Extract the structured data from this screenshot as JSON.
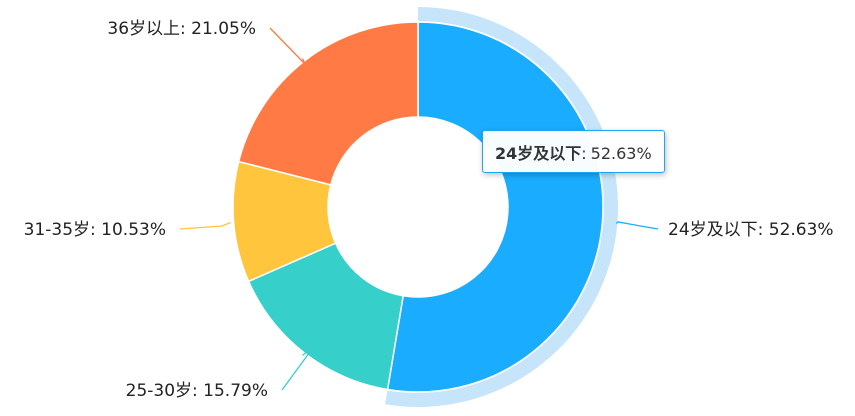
{
  "chart_data": {
    "type": "pie",
    "variant": "donut",
    "title": "",
    "slices": [
      {
        "name": "24岁及以下",
        "value": 52.63,
        "label": "24岁及以下: 52.63%",
        "color": "#1aadff",
        "highlighted": true
      },
      {
        "name": "25-30岁",
        "value": 15.79,
        "label": "25-30岁: 15.79%",
        "color": "#36cfc9"
      },
      {
        "name": "31-35岁",
        "value": 10.53,
        "label": "31-35岁: 10.53%",
        "color": "#ffc53d"
      },
      {
        "name": "36岁以上",
        "value": 21.05,
        "label": "36岁以上: 21.05%",
        "color": "#ff7a45"
      }
    ],
    "highlight_ring_color": "#c6e5fb"
  },
  "tooltip": {
    "name": "24岁及以下",
    "separator": ":",
    "value": "52.63%"
  }
}
